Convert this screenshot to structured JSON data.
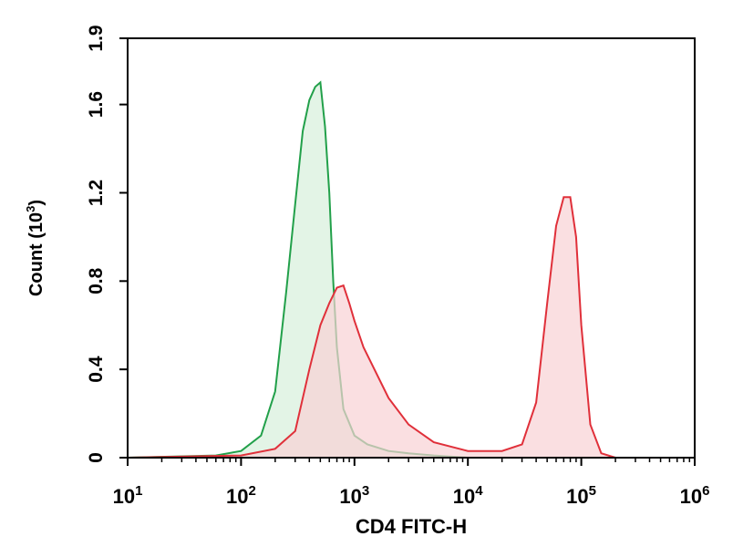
{
  "chart_data": {
    "type": "area",
    "xlabel": "CD4 FITC-H",
    "ylabel": "Count (10",
    "ylabel_exponent": "3",
    "ylabel_close": ")",
    "x_scale": "log",
    "xlim": [
      10,
      1000000
    ],
    "ylim": [
      0,
      1.9
    ],
    "x_ticks": [
      {
        "value": 10,
        "base": "10",
        "exp": "1"
      },
      {
        "value": 100,
        "base": "10",
        "exp": "2"
      },
      {
        "value": 1000,
        "base": "10",
        "exp": "3"
      },
      {
        "value": 10000,
        "base": "10",
        "exp": "4"
      },
      {
        "value": 100000,
        "base": "10",
        "exp": "5"
      },
      {
        "value": 1000000,
        "base": "10",
        "exp": "6"
      }
    ],
    "y_ticks": [
      "0",
      "0.4",
      "0.8",
      "1.2",
      "1.6",
      "1.9"
    ],
    "grid": false,
    "legend": "none",
    "series": [
      {
        "color": "#22a04a",
        "fill": "#d7f0dc",
        "x": [
          10,
          60,
          100,
          150,
          200,
          250,
          300,
          350,
          400,
          450,
          500,
          550,
          600,
          650,
          700,
          800,
          1000,
          1300,
          2000,
          3000,
          5000,
          10000
        ],
        "y": [
          0,
          0.01,
          0.03,
          0.1,
          0.3,
          0.75,
          1.15,
          1.48,
          1.62,
          1.68,
          1.7,
          1.5,
          1.2,
          0.8,
          0.5,
          0.22,
          0.1,
          0.06,
          0.03,
          0.02,
          0.01,
          0
        ]
      },
      {
        "color": "#e0303a",
        "fill": "#f8d2d4",
        "x": [
          10,
          100,
          200,
          300,
          400,
          500,
          600,
          700,
          800,
          900,
          1000,
          1200,
          1500,
          2000,
          3000,
          5000,
          10000,
          20000,
          30000,
          40000,
          50000,
          60000,
          70000,
          80000,
          90000,
          100000,
          120000,
          150000,
          200000
        ],
        "y": [
          0,
          0.01,
          0.04,
          0.12,
          0.4,
          0.6,
          0.7,
          0.77,
          0.78,
          0.7,
          0.62,
          0.5,
          0.4,
          0.27,
          0.15,
          0.07,
          0.03,
          0.03,
          0.06,
          0.25,
          0.7,
          1.05,
          1.18,
          1.18,
          1.0,
          0.6,
          0.15,
          0.02,
          0
        ]
      }
    ]
  }
}
